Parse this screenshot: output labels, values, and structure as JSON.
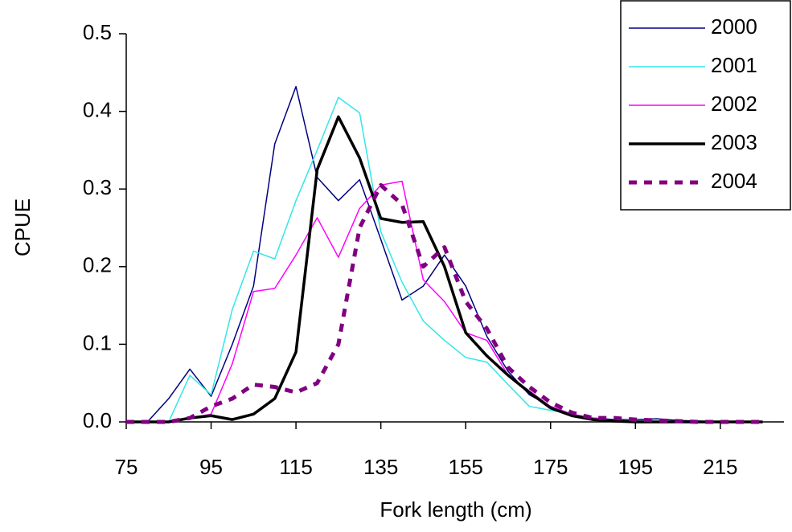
{
  "chart_data": {
    "type": "line",
    "x_label": "Fork length (cm)",
    "y_label": "CPUE",
    "x": [
      75,
      80,
      85,
      90,
      95,
      100,
      105,
      110,
      115,
      120,
      125,
      130,
      135,
      140,
      145,
      150,
      155,
      160,
      165,
      170,
      175,
      180,
      185,
      190,
      195,
      200,
      205,
      210,
      215,
      220,
      225
    ],
    "xlim": [
      75,
      230
    ],
    "xticks": [
      75,
      95,
      115,
      135,
      155,
      175,
      195,
      215
    ],
    "ylim": [
      0,
      0.5
    ],
    "yticks": [
      {
        "value": 0,
        "label": "0.0"
      },
      0.1,
      0.2,
      0.3,
      0.4,
      0.5
    ],
    "legend": "top-right",
    "series": [
      {
        "name": "2000",
        "color": "#000080",
        "width": 1.5,
        "dash": "none",
        "values": [
          0,
          0,
          0.03,
          0.068,
          0.033,
          0.1,
          0.175,
          0.358,
          0.432,
          0.315,
          0.285,
          0.312,
          0.235,
          0.157,
          0.175,
          0.215,
          0.175,
          0.11,
          0.065,
          0.035,
          0.02,
          0.01,
          0.005,
          0.003,
          0.003,
          0.004,
          0.002,
          0.001,
          0,
          0,
          0
        ]
      },
      {
        "name": "2001",
        "color": "#33e6e6",
        "width": 1.5,
        "dash": "none",
        "values": [
          0,
          0,
          0,
          0.06,
          0.035,
          0.145,
          0.22,
          0.21,
          0.285,
          0.35,
          0.418,
          0.398,
          0.245,
          0.18,
          0.13,
          0.105,
          0.083,
          0.077,
          0.048,
          0.02,
          0.015,
          0.01,
          0.005,
          0.002,
          0.002,
          0.001,
          0,
          0,
          0,
          0,
          0
        ]
      },
      {
        "name": "2002",
        "color": "#ff00ff",
        "width": 1.5,
        "dash": "none",
        "values": [
          0,
          0,
          0,
          0.005,
          0.01,
          0.075,
          0.168,
          0.172,
          0.215,
          0.263,
          0.212,
          0.275,
          0.305,
          0.31,
          0.183,
          0.155,
          0.115,
          0.105,
          0.06,
          0.04,
          0.02,
          0.01,
          0.005,
          0.002,
          0.001,
          0,
          0,
          0,
          0,
          0,
          0
        ]
      },
      {
        "name": "2003",
        "color": "#000000",
        "width": 3.5,
        "dash": "none",
        "values": [
          0,
          0,
          0,
          0.005,
          0.008,
          0.003,
          0.01,
          0.03,
          0.09,
          0.325,
          0.393,
          0.34,
          0.262,
          0.257,
          0.258,
          0.2,
          0.115,
          0.085,
          0.06,
          0.038,
          0.018,
          0.008,
          0.003,
          0.001,
          0,
          0,
          0,
          0,
          0,
          0,
          0
        ]
      },
      {
        "name": "2004",
        "color": "#800080",
        "width": 5,
        "dash": "10 9",
        "values": [
          0,
          0,
          0,
          0.005,
          0.02,
          0.03,
          0.048,
          0.045,
          0.038,
          0.05,
          0.1,
          0.25,
          0.305,
          0.28,
          0.2,
          0.225,
          0.155,
          0.12,
          0.07,
          0.045,
          0.025,
          0.012,
          0.005,
          0.005,
          0.003,
          0.002,
          0.001,
          0,
          0,
          0,
          0
        ]
      }
    ]
  }
}
